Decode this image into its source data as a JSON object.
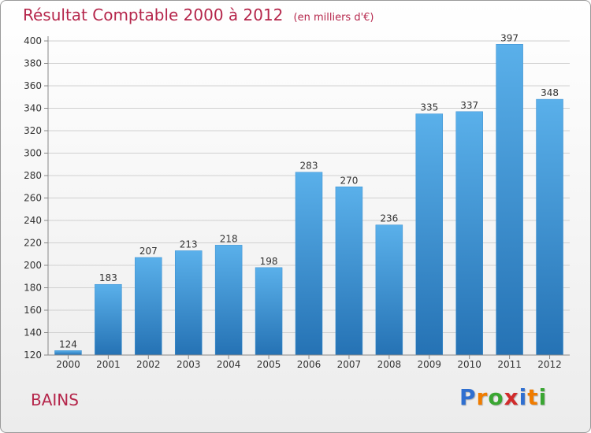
{
  "header": {
    "title": "Résultat Comptable 2000 à 2012",
    "unit": "(en milliers d'€)"
  },
  "footer": {
    "commune": "BAINS",
    "brand_letters": [
      "P",
      "r",
      "o",
      "x",
      "i",
      "t",
      "i"
    ],
    "brand_colors": [
      "#2f6fd0",
      "#f07c00",
      "#3aa632",
      "#d12b2b",
      "#2f6fd0",
      "#f07c00",
      "#3aa632"
    ]
  },
  "colors": {
    "accent": "#b5264b",
    "bar_top": "#5ab0ea",
    "bar_bottom": "#2572b4",
    "grid": "#d0d0d0"
  },
  "chart_data": {
    "type": "bar",
    "title": "Résultat Comptable 2000 à 2012",
    "xlabel": "",
    "ylabel": "",
    "categories": [
      "2000",
      "2001",
      "2002",
      "2003",
      "2004",
      "2005",
      "2006",
      "2007",
      "2008",
      "2009",
      "2010",
      "2011",
      "2012"
    ],
    "values": [
      124,
      183,
      207,
      213,
      218,
      198,
      283,
      270,
      236,
      335,
      337,
      397,
      348
    ],
    "ylim": [
      120,
      400
    ],
    "yticks": [
      120,
      140,
      160,
      180,
      200,
      220,
      240,
      260,
      280,
      300,
      320,
      340,
      360,
      380,
      400
    ],
    "grid": true
  }
}
